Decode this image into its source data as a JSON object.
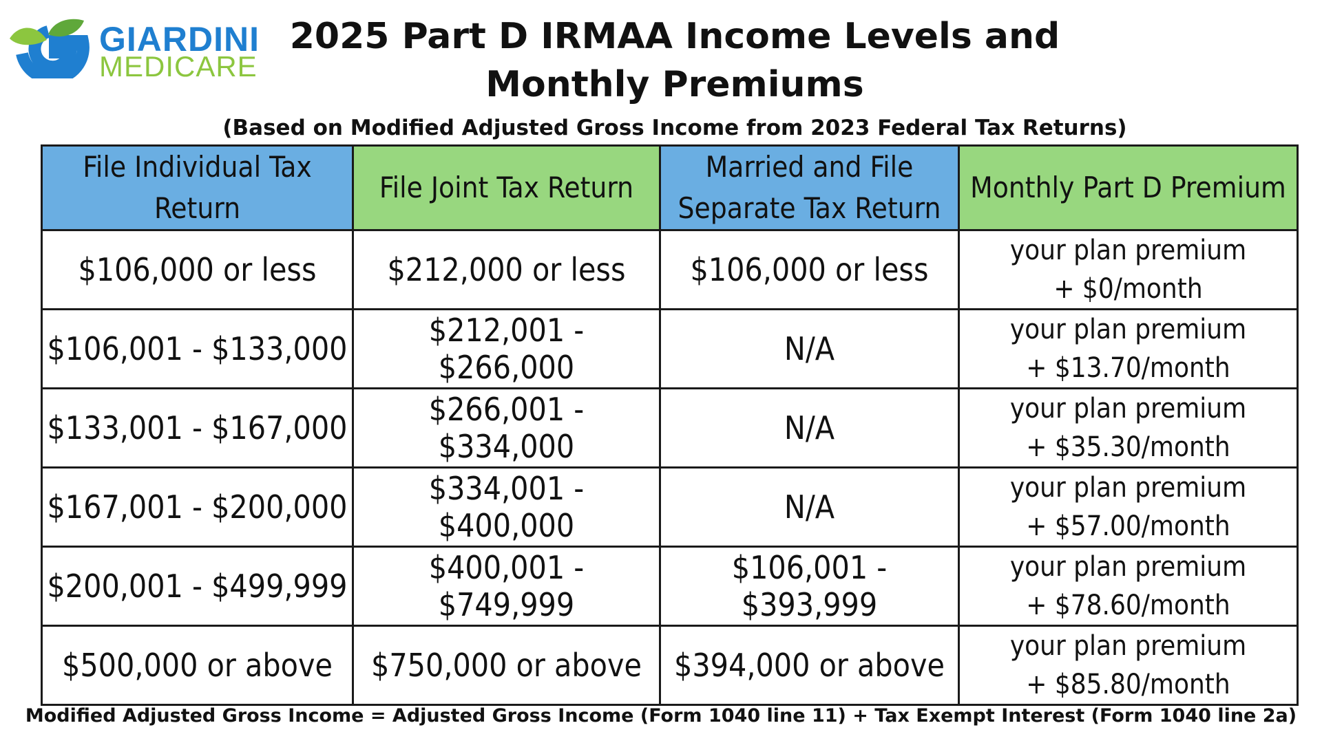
{
  "logo": {
    "line1": "GIARDINI",
    "line2": "MEDICARE",
    "icon": "leaf-g-logo-icon",
    "colors": {
      "blue": "#1f7fd0",
      "green": "#8cc63f"
    }
  },
  "title": {
    "line1": "2025 Part D IRMAA Income Levels and",
    "line2": "Monthly Premiums"
  },
  "subtitle": "(Based on Modified Adjusted Gross Income from 2023 Federal Tax Returns)",
  "table": {
    "headers": [
      {
        "text": "File Individual Tax Return",
        "color": "#6aaee2"
      },
      {
        "text": "File Joint Tax Return",
        "color": "#98d77f"
      },
      {
        "text": "Married and File Separate Tax Return",
        "line1": "Married and File",
        "line2": "Separate Tax Return",
        "color": "#6aaee2"
      },
      {
        "text": "Monthly Part D Premium",
        "color": "#98d77f"
      }
    ],
    "rows": [
      {
        "individual": "$106,000 or less",
        "joint": "$212,000 or less",
        "separate": "$106,000 or less",
        "premium_line1": "your plan premium",
        "premium_line2": "+ $0/month"
      },
      {
        "individual": "$106,001 - $133,000",
        "joint": "$212,001 - $266,000",
        "separate": "N/A",
        "premium_line1": "your plan premium",
        "premium_line2": "+ $13.70/month"
      },
      {
        "individual": "$133,001 - $167,000",
        "joint": "$266,001 - $334,000",
        "separate": "N/A",
        "premium_line1": "your plan premium",
        "premium_line2": "+ $35.30/month"
      },
      {
        "individual": "$167,001 - $200,000",
        "joint": "$334,001 - $400,000",
        "separate": "N/A",
        "premium_line1": "your plan premium",
        "premium_line2": "+ $57.00/month"
      },
      {
        "individual": "$200,001 - $499,999",
        "joint": "$400,001 - $749,999",
        "separate": "$106,001 - $393,999",
        "premium_line1": "your plan premium",
        "premium_line2": "+ $78.60/month"
      },
      {
        "individual": "$500,000 or above",
        "joint": "$750,000 or above",
        "separate": "$394,000 or above",
        "premium_line1": "your plan premium",
        "premium_line2": "+ $85.80/month"
      }
    ]
  },
  "footer": "Modified Adjusted Gross Income = Adjusted Gross Income (Form 1040 line 11) + Tax Exempt Interest (Form 1040 line 2a)"
}
